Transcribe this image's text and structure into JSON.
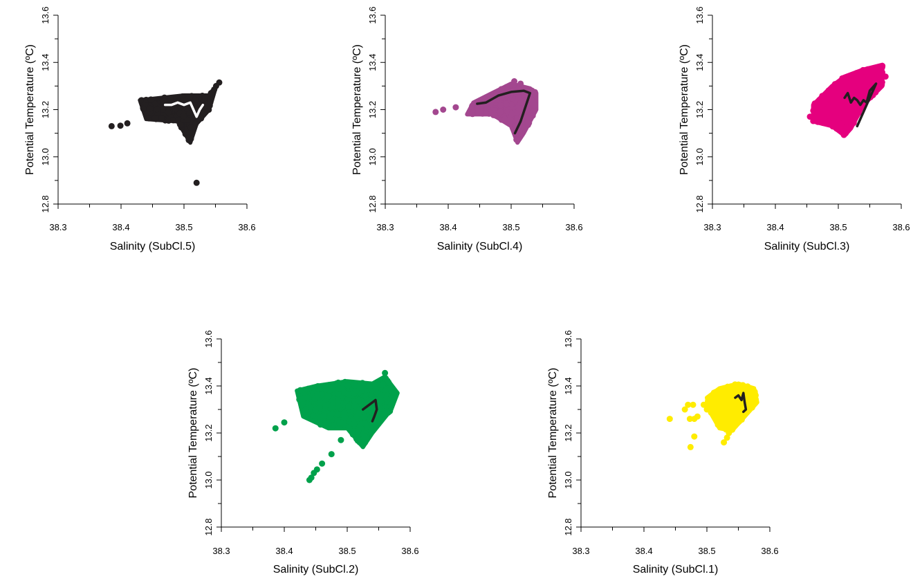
{
  "chart_data": [
    {
      "type": "scatter",
      "xlabel": "Salinity (SubCl.5)",
      "ylabel": "Potential Temperature (ºC)",
      "xlim": [
        38.3,
        38.6
      ],
      "ylim": [
        12.8,
        13.6
      ],
      "xticks": [
        "38.3",
        "38.4",
        "38.5",
        "38.6"
      ],
      "yticks": [
        "12.8",
        "13.0",
        "13.2",
        "13.4",
        "13.6"
      ],
      "point_color": "#231f20",
      "line_color": "#ffffff",
      "cloud": {
        "polygon": [
          [
            38.43,
            13.24
          ],
          [
            38.5,
            13.26
          ],
          [
            38.54,
            13.26
          ],
          [
            38.55,
            13.29
          ],
          [
            38.54,
            13.2
          ],
          [
            38.52,
            13.14
          ],
          [
            38.51,
            13.06
          ],
          [
            38.49,
            13.15
          ],
          [
            38.44,
            13.16
          ]
        ],
        "count": 240
      },
      "points": [
        [
          38.385,
          13.13
        ],
        [
          38.399,
          13.132
        ],
        [
          38.41,
          13.142
        ],
        [
          38.52,
          12.89
        ],
        [
          38.551,
          13.3
        ],
        [
          38.556,
          13.315
        ],
        [
          38.543,
          13.27
        ],
        [
          38.548,
          13.285
        ]
      ],
      "mean_line": [
        [
          38.47,
          13.22
        ],
        [
          38.48,
          13.22
        ],
        [
          38.49,
          13.23
        ],
        [
          38.5,
          13.22
        ],
        [
          38.51,
          13.23
        ],
        [
          38.515,
          13.2
        ],
        [
          38.52,
          13.17
        ],
        [
          38.525,
          13.2
        ],
        [
          38.53,
          13.22
        ]
      ]
    },
    {
      "type": "scatter",
      "xlabel": "Salinity (SubCl.4)",
      "ylabel": "Potential Temperature (ºC)",
      "xlim": [
        38.3,
        38.6
      ],
      "ylim": [
        12.8,
        13.6
      ],
      "xticks": [
        "38.3",
        "38.4",
        "38.5",
        "38.6"
      ],
      "yticks": [
        "12.8",
        "13.0",
        "13.2",
        "13.4",
        "13.6"
      ],
      "point_color": "#a3478f",
      "line_color": "#231f20",
      "cloud": {
        "polygon": [
          [
            38.44,
            13.23
          ],
          [
            38.47,
            13.27
          ],
          [
            38.5,
            13.31
          ],
          [
            38.53,
            13.29
          ],
          [
            38.54,
            13.27
          ],
          [
            38.54,
            13.2
          ],
          [
            38.52,
            13.1
          ],
          [
            38.51,
            13.06
          ],
          [
            38.5,
            13.13
          ],
          [
            38.47,
            13.18
          ],
          [
            38.43,
            13.18
          ]
        ],
        "count": 260
      },
      "points": [
        [
          38.38,
          13.19
        ],
        [
          38.392,
          13.2
        ],
        [
          38.412,
          13.21
        ],
        [
          38.505,
          13.32
        ],
        [
          38.515,
          13.31
        ]
      ],
      "mean_line": [
        [
          38.446,
          13.225
        ],
        [
          38.46,
          13.23
        ],
        [
          38.48,
          13.26
        ],
        [
          38.5,
          13.275
        ],
        [
          38.52,
          13.28
        ],
        [
          38.53,
          13.27
        ],
        [
          38.525,
          13.23
        ],
        [
          38.515,
          13.15
        ],
        [
          38.506,
          13.1
        ]
      ]
    },
    {
      "type": "scatter",
      "xlabel": "Salinity (SubCl.3)",
      "ylabel": "Potential Temperature (ºC)",
      "xlim": [
        38.3,
        38.6
      ],
      "ylim": [
        12.8,
        13.6
      ],
      "xticks": [
        "38.3",
        "38.4",
        "38.5",
        "38.6"
      ],
      "yticks": [
        "12.8",
        "13.0",
        "13.2",
        "13.4",
        "13.6"
      ],
      "point_color": "#e5007e",
      "line_color": "#231f20",
      "cloud": {
        "polygon": [
          [
            38.46,
            13.22
          ],
          [
            38.49,
            13.3
          ],
          [
            38.51,
            13.34
          ],
          [
            38.54,
            13.37
          ],
          [
            38.57,
            13.39
          ],
          [
            38.57,
            13.3
          ],
          [
            38.54,
            13.22
          ],
          [
            38.52,
            13.12
          ],
          [
            38.51,
            13.09
          ],
          [
            38.49,
            13.13
          ],
          [
            38.46,
            13.15
          ]
        ],
        "count": 320
      },
      "points": [
        [
          38.455,
          13.17
        ],
        [
          38.57,
          13.385
        ],
        [
          38.575,
          13.34
        ]
      ],
      "mean_line": [
        [
          38.51,
          13.25
        ],
        [
          38.515,
          13.27
        ],
        [
          38.52,
          13.23
        ],
        [
          38.525,
          13.25
        ],
        [
          38.53,
          13.24
        ],
        [
          38.535,
          13.22
        ],
        [
          38.54,
          13.24
        ],
        [
          38.545,
          13.23
        ],
        [
          38.55,
          13.28
        ],
        [
          38.56,
          13.31
        ],
        [
          38.545,
          13.22
        ],
        [
          38.53,
          13.13
        ]
      ]
    },
    {
      "type": "scatter",
      "xlabel": "Salinity (SubCl.2)",
      "ylabel": "Potential Temperature (ºC)",
      "xlim": [
        38.3,
        38.6
      ],
      "ylim": [
        12.8,
        13.6
      ],
      "xticks": [
        "38.3",
        "38.4",
        "38.5",
        "38.6"
      ],
      "yticks": [
        "12.8",
        "13.0",
        "13.2",
        "13.4",
        "13.6"
      ],
      "point_color": "#00a14b",
      "line_color": "#231f20",
      "cloud": {
        "polygon": [
          [
            38.42,
            13.38
          ],
          [
            38.45,
            13.4
          ],
          [
            38.5,
            13.42
          ],
          [
            38.54,
            13.41
          ],
          [
            38.56,
            13.44
          ],
          [
            38.58,
            13.37
          ],
          [
            38.57,
            13.3
          ],
          [
            38.54,
            13.2
          ],
          [
            38.525,
            13.14
          ],
          [
            38.5,
            13.22
          ],
          [
            38.47,
            13.22
          ],
          [
            38.43,
            13.27
          ]
        ],
        "count": 360
      },
      "points": [
        [
          38.386,
          13.22
        ],
        [
          38.4,
          13.245
        ],
        [
          38.44,
          13.0
        ],
        [
          38.443,
          13.01
        ],
        [
          38.447,
          13.03
        ],
        [
          38.452,
          13.045
        ],
        [
          38.46,
          13.07
        ],
        [
          38.475,
          13.11
        ],
        [
          38.49,
          13.17
        ],
        [
          38.56,
          13.455
        ]
      ],
      "mean_line": [
        [
          38.525,
          13.3
        ],
        [
          38.535,
          13.32
        ],
        [
          38.545,
          13.34
        ],
        [
          38.547,
          13.3
        ],
        [
          38.543,
          13.27
        ],
        [
          38.54,
          13.25
        ]
      ]
    },
    {
      "type": "scatter",
      "xlabel": "Salinity (SubCl.1)",
      "ylabel": "Potential Temperature (ºC)",
      "xlim": [
        38.3,
        38.6
      ],
      "ylim": [
        12.8,
        13.6
      ],
      "xticks": [
        "38.3",
        "38.4",
        "38.5",
        "38.6"
      ],
      "yticks": [
        "12.8",
        "13.0",
        "13.2",
        "13.4",
        "13.6"
      ],
      "point_color": "#ffec00",
      "line_color": "#231f20",
      "cloud": {
        "polygon": [
          [
            38.5,
            13.35
          ],
          [
            38.52,
            13.39
          ],
          [
            38.55,
            13.41
          ],
          [
            38.575,
            13.39
          ],
          [
            38.58,
            13.33
          ],
          [
            38.56,
            13.27
          ],
          [
            38.54,
            13.21
          ],
          [
            38.52,
            13.22
          ],
          [
            38.505,
            13.29
          ]
        ],
        "count": 220
      },
      "points": [
        [
          38.441,
          13.26
        ],
        [
          38.465,
          13.3
        ],
        [
          38.47,
          13.32
        ],
        [
          38.478,
          13.32
        ],
        [
          38.473,
          13.26
        ],
        [
          38.48,
          13.26
        ],
        [
          38.485,
          13.27
        ],
        [
          38.474,
          13.14
        ],
        [
          38.48,
          13.185
        ],
        [
          38.527,
          13.16
        ],
        [
          38.532,
          13.18
        ],
        [
          38.535,
          13.2
        ],
        [
          38.5,
          13.3
        ],
        [
          38.495,
          13.32
        ]
      ],
      "mean_line": [
        [
          38.545,
          13.35
        ],
        [
          38.55,
          13.36
        ],
        [
          38.555,
          13.34
        ],
        [
          38.558,
          13.37
        ],
        [
          38.56,
          13.33
        ],
        [
          38.562,
          13.3
        ],
        [
          38.558,
          13.29
        ]
      ]
    }
  ]
}
